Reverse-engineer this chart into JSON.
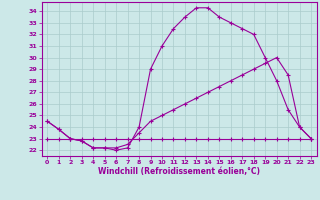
{
  "xlabel": "Windchill (Refroidissement éolien,°C)",
  "background_color": "#cce8e8",
  "grid_color": "#aacccc",
  "line_color": "#990099",
  "xlim": [
    -0.5,
    23.5
  ],
  "ylim": [
    21.5,
    34.8
  ],
  "xticks": [
    0,
    1,
    2,
    3,
    4,
    5,
    6,
    7,
    8,
    9,
    10,
    11,
    12,
    13,
    14,
    15,
    16,
    17,
    18,
    19,
    20,
    21,
    22,
    23
  ],
  "yticks": [
    22,
    23,
    24,
    25,
    26,
    27,
    28,
    29,
    30,
    31,
    32,
    33,
    34
  ],
  "line1_x": [
    0,
    1,
    2,
    3,
    4,
    5,
    6,
    7,
    8,
    9,
    10,
    11,
    12,
    13,
    14,
    15,
    16,
    17,
    18,
    19,
    20,
    21,
    22,
    23
  ],
  "line1_y": [
    24.5,
    23.8,
    23.0,
    22.8,
    22.2,
    22.2,
    22.0,
    22.2,
    24.0,
    29.0,
    31.0,
    32.5,
    33.5,
    34.3,
    34.3,
    33.5,
    33.0,
    32.5,
    32.0,
    30.0,
    28.0,
    25.5,
    24.0,
    23.0
  ],
  "line2_x": [
    0,
    1,
    2,
    3,
    4,
    5,
    6,
    7,
    8,
    9,
    10,
    11,
    12,
    13,
    14,
    15,
    16,
    17,
    18,
    19,
    20,
    21,
    22,
    23
  ],
  "line2_y": [
    24.5,
    23.8,
    23.0,
    22.8,
    22.2,
    22.2,
    22.2,
    22.5,
    23.5,
    24.5,
    25.0,
    25.5,
    26.0,
    26.5,
    27.0,
    27.5,
    28.0,
    28.5,
    29.0,
    29.5,
    30.0,
    28.5,
    24.0,
    23.0
  ],
  "line3_x": [
    0,
    1,
    2,
    3,
    4,
    5,
    6,
    7,
    8,
    9,
    10,
    11,
    12,
    13,
    14,
    15,
    16,
    17,
    18,
    19,
    20,
    21,
    22,
    23
  ],
  "line3_y": [
    23.0,
    23.0,
    23.0,
    23.0,
    23.0,
    23.0,
    23.0,
    23.0,
    23.0,
    23.0,
    23.0,
    23.0,
    23.0,
    23.0,
    23.0,
    23.0,
    23.0,
    23.0,
    23.0,
    23.0,
    23.0,
    23.0,
    23.0,
    23.0
  ],
  "xlabel_fontsize": 5.5,
  "tick_fontsize": 4.5
}
